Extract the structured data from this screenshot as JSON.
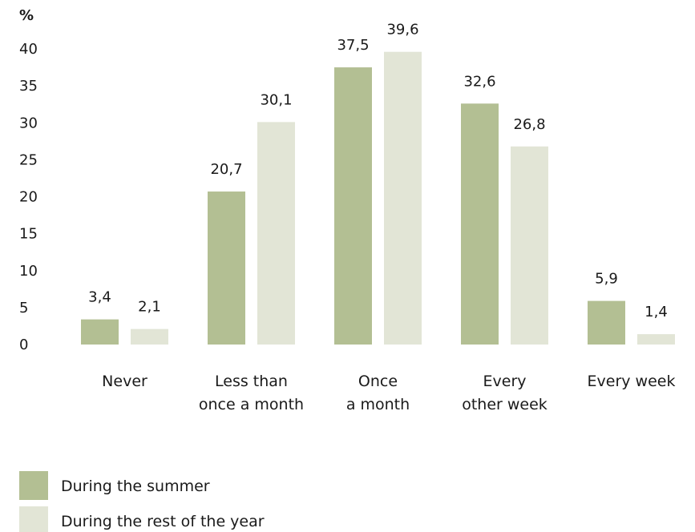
{
  "chart_data": {
    "type": "bar",
    "unit_label": "%",
    "ylim": [
      0,
      40
    ],
    "yticks": [
      "0",
      "5",
      "10",
      "15",
      "20",
      "25",
      "30",
      "35",
      "40"
    ],
    "categories": [
      [
        "Never"
      ],
      [
        "Less than",
        "once a month"
      ],
      [
        "Once",
        "a month"
      ],
      [
        "Every",
        "other week"
      ],
      [
        "Every week"
      ]
    ],
    "series": [
      {
        "name": "During the summer",
        "color": "#b3bf93",
        "values": [
          3.4,
          20.7,
          37.5,
          32.6,
          5.9
        ],
        "labels": [
          "3,4",
          "20,7",
          "37,5",
          "32,6",
          "5,9"
        ]
      },
      {
        "name": "During the rest of the year",
        "color": "#e2e5d6",
        "values": [
          2.1,
          30.1,
          39.6,
          26.8,
          1.4
        ],
        "labels": [
          "2,1",
          "30,1",
          "39,6",
          "26,8",
          "1,4"
        ]
      }
    ],
    "grid": false,
    "legend_position": "bottom-left"
  }
}
